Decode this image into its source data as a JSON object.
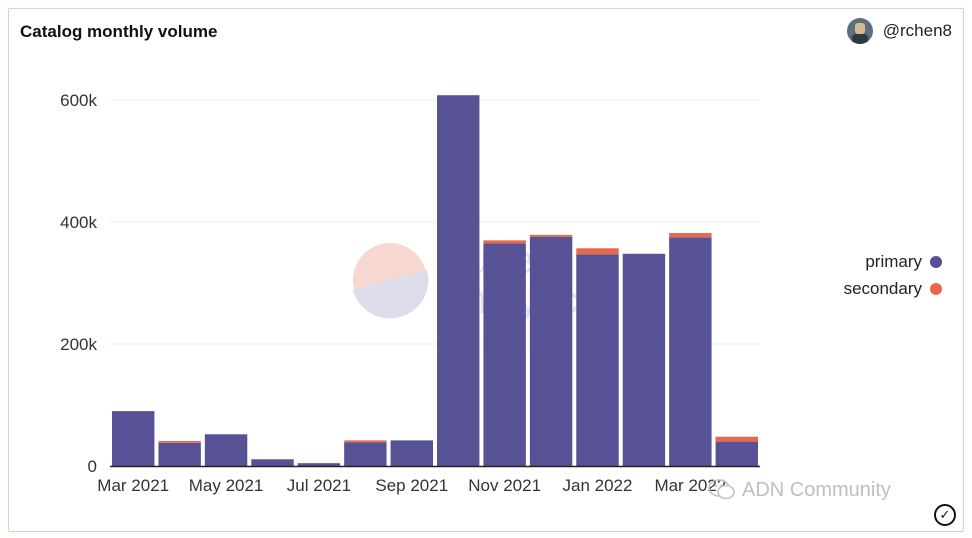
{
  "header": {
    "title": "Catalog monthly volume",
    "author": "@rchen8"
  },
  "watermark": {
    "line1": "Dune",
    "line2": "Analytics"
  },
  "footer": {
    "community": "ADN Community"
  },
  "icons": {
    "avatar": "avatar-icon",
    "check": "check-circle-icon",
    "wechat": "wechat-icon"
  },
  "colors": {
    "primary": "#575195",
    "secondary": "#e8694a"
  },
  "chart_data": {
    "type": "bar",
    "stacked": true,
    "title": "Catalog monthly volume",
    "categories": [
      "Mar 2021",
      "Apr 2021",
      "May 2021",
      "Jun 2021",
      "Jul 2021",
      "Aug 2021",
      "Sep 2021",
      "Oct 2021",
      "Nov 2021",
      "Dec 2021",
      "Jan 2022",
      "Feb 2022",
      "Mar 2022",
      "Apr 2022"
    ],
    "x_tick_labels": [
      "Mar 2021",
      "May 2021",
      "Jul 2021",
      "Sep 2021",
      "Nov 2021",
      "Jan 2022",
      "Mar 2022"
    ],
    "series": [
      {
        "name": "primary",
        "color": "#575195",
        "values": [
          90000,
          38000,
          52000,
          11000,
          4000,
          39000,
          42000,
          608000,
          365000,
          376000,
          347000,
          348000,
          375000,
          40000
        ]
      },
      {
        "name": "secondary",
        "color": "#e8694a",
        "values": [
          0,
          3000,
          0,
          0,
          1000,
          3000,
          0,
          0,
          5000,
          3000,
          10000,
          0,
          7000,
          8000
        ]
      }
    ],
    "y_ticks": [
      0,
      200000,
      400000,
      600000
    ],
    "y_tick_labels": [
      "0",
      "200k",
      "400k",
      "600k"
    ],
    "ylim": [
      0,
      640000
    ],
    "grid": true,
    "legend_position": "right"
  }
}
